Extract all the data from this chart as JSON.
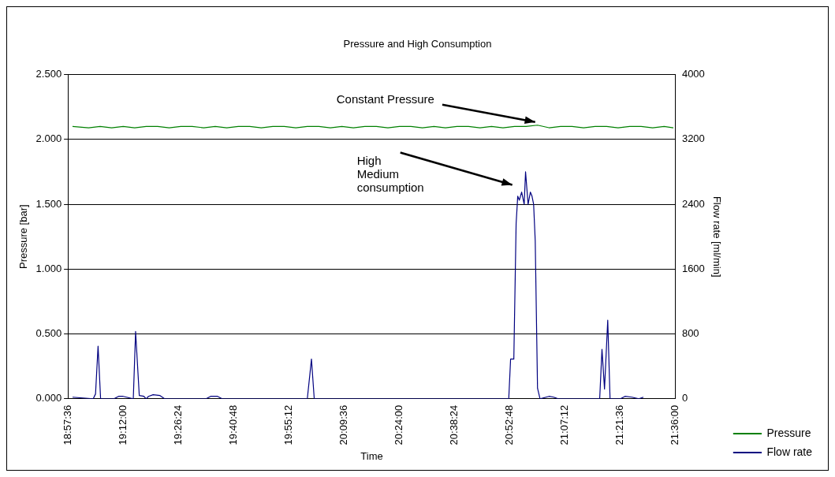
{
  "chart_data": {
    "type": "line",
    "title": "Pressure and High Consumption",
    "xlabel": "Time",
    "ylabel": "Pressure [bar]",
    "y2label": "Flow rate [ml/min]",
    "xlim": [
      18.96,
      21.6
    ],
    "xticks": [
      {
        "value": 18.96,
        "label": "18:57:36"
      },
      {
        "value": 19.2,
        "label": "19:12:00"
      },
      {
        "value": 19.44,
        "label": "19:26:24"
      },
      {
        "value": 19.68,
        "label": "19:40:48"
      },
      {
        "value": 19.92,
        "label": "19:55:12"
      },
      {
        "value": 20.16,
        "label": "20:09:36"
      },
      {
        "value": 20.4,
        "label": "20:24:00"
      },
      {
        "value": 20.64,
        "label": "20:38:24"
      },
      {
        "value": 20.88,
        "label": "20:52:48"
      },
      {
        "value": 21.12,
        "label": "21:07:12"
      },
      {
        "value": 21.36,
        "label": "21:21:36"
      },
      {
        "value": 21.6,
        "label": "21:36:00"
      }
    ],
    "ylim": [
      0,
      2.5
    ],
    "yticks": [
      {
        "value": 0,
        "label": "0.000"
      },
      {
        "value": 0.5,
        "label": "0.500"
      },
      {
        "value": 1,
        "label": "1.000"
      },
      {
        "value": 1.5,
        "label": "1.500"
      },
      {
        "value": 2,
        "label": "2.000"
      },
      {
        "value": 2.5,
        "label": "2.500"
      }
    ],
    "y2lim": [
      0,
      4000
    ],
    "y2ticks": [
      0,
      800,
      1600,
      2400,
      3200,
      4000
    ],
    "grid": "y",
    "legend": "bottom right",
    "marker": "none",
    "line_style": "solid",
    "annotations": [
      {
        "text": "Constant Pressure",
        "x": 21.0,
        "y": 2.11
      },
      "High\nMedium\nconsumption"
    ],
    "series": [
      {
        "name": "Pressure",
        "color": "#008000",
        "x": [
          18.98,
          19.05,
          19.1,
          19.15,
          19.2,
          19.25,
          19.3,
          19.35,
          19.4,
          19.45,
          19.5,
          19.55,
          19.6,
          19.65,
          19.7,
          19.75,
          19.8,
          19.85,
          19.9,
          19.95,
          20.0,
          20.05,
          20.1,
          20.15,
          20.2,
          20.25,
          20.3,
          20.35,
          20.4,
          20.45,
          20.5,
          20.55,
          20.6,
          20.65,
          20.7,
          20.75,
          20.8,
          20.85,
          20.9,
          20.95,
          21.0,
          21.05,
          21.1,
          21.15,
          21.2,
          21.25,
          21.3,
          21.35,
          21.4,
          21.45,
          21.5,
          21.55,
          21.59
        ],
        "values": [
          2.1,
          2.09,
          2.1,
          2.09,
          2.1,
          2.09,
          2.1,
          2.1,
          2.09,
          2.1,
          2.1,
          2.09,
          2.1,
          2.09,
          2.1,
          2.1,
          2.09,
          2.1,
          2.1,
          2.09,
          2.1,
          2.1,
          2.09,
          2.1,
          2.09,
          2.1,
          2.1,
          2.09,
          2.1,
          2.1,
          2.09,
          2.1,
          2.09,
          2.1,
          2.1,
          2.09,
          2.1,
          2.09,
          2.1,
          2.1,
          2.11,
          2.09,
          2.1,
          2.1,
          2.09,
          2.1,
          2.1,
          2.09,
          2.1,
          2.1,
          2.09,
          2.1,
          2.09
        ]
      },
      {
        "name": "Flow rate",
        "color": "#000080",
        "axis": "y2",
        "x": [
          18.98,
          19.07,
          19.08,
          19.091,
          19.102,
          19.16,
          19.18,
          19.2,
          19.244,
          19.254,
          19.27,
          19.29,
          19.3,
          19.31,
          19.33,
          19.36,
          19.38,
          19.56,
          19.58,
          19.61,
          19.63,
          20.0,
          20.018,
          20.03,
          20.875,
          20.883,
          20.897,
          20.907,
          20.914,
          20.921,
          20.931,
          20.942,
          20.948,
          20.959,
          20.969,
          20.976,
          20.983,
          20.99,
          21.0,
          21.011,
          21.05,
          21.07,
          21.09,
          21.27,
          21.28,
          21.291,
          21.305,
          21.315,
          21.36,
          21.38,
          21.41,
          21.44,
          21.46
        ],
        "values": [
          20,
          0,
          60,
          650,
          0,
          0,
          30,
          30,
          0,
          830,
          40,
          30,
          0,
          30,
          50,
          40,
          0,
          0,
          30,
          30,
          0,
          0,
          490,
          0,
          0,
          490,
          490,
          2160,
          2500,
          2450,
          2550,
          2400,
          2800,
          2400,
          2550,
          2500,
          2400,
          1950,
          130,
          0,
          30,
          20,
          0,
          0,
          610,
          120,
          970,
          0,
          0,
          30,
          20,
          0,
          20
        ]
      }
    ]
  }
}
